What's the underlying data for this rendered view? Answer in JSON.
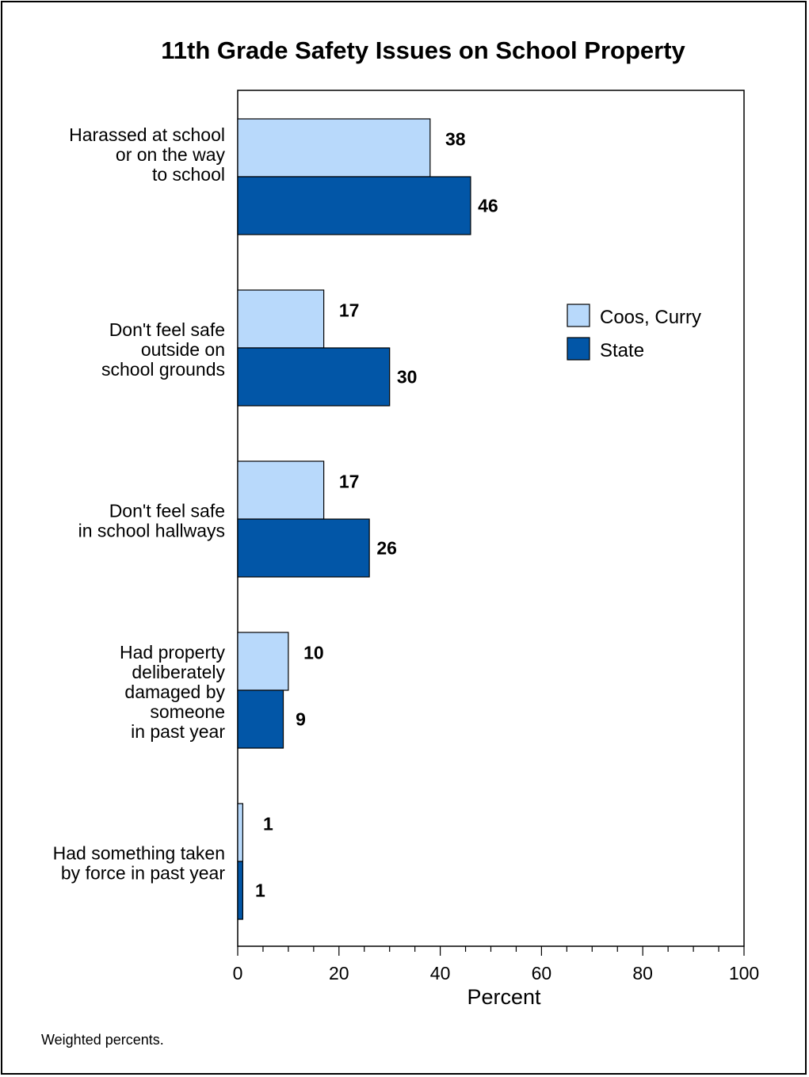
{
  "chart_data": {
    "type": "bar",
    "orientation": "horizontal",
    "title": "11th Grade Safety Issues on School Property",
    "xlabel": "Percent",
    "xlim": [
      0,
      100
    ],
    "x_ticks": [
      "0",
      "20",
      "40",
      "60",
      "80",
      "100"
    ],
    "categories": [
      [
        "Harassed at school",
        "or on the way",
        "to school"
      ],
      [
        "Don't feel safe",
        "outside on",
        "school grounds"
      ],
      [
        "Don't feel safe",
        "in school hallways"
      ],
      [
        "Had property",
        "deliberately",
        "damaged by",
        "someone",
        "in past year"
      ],
      [
        "Had something taken",
        "by force in past year"
      ]
    ],
    "series": [
      {
        "name": "Coos, Curry",
        "color": "#b8d9fb",
        "values": [
          38,
          17,
          17,
          10,
          1
        ]
      },
      {
        "name": "State",
        "color": "#0256a7",
        "values": [
          46,
          30,
          26,
          9,
          1
        ]
      }
    ],
    "grid": false,
    "legend_position": "right"
  },
  "footnote": "Weighted percents."
}
